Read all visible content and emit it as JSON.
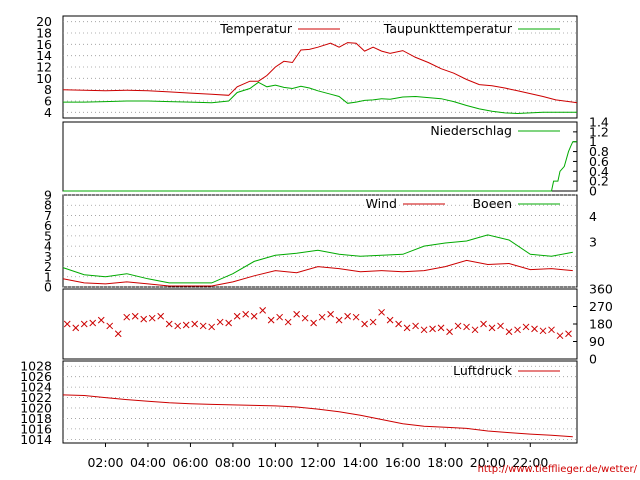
{
  "credit": "http://www.tiefflieger.de/wetter/",
  "colors": {
    "red": "#cc0000",
    "green": "#00aa00",
    "grid": "#999999",
    "credit": "#d00000"
  },
  "x_axis": {
    "ticks": [
      {
        "hour": 2,
        "label": "02:00"
      },
      {
        "hour": 4,
        "label": "04:00"
      },
      {
        "hour": 6,
        "label": "06:00"
      },
      {
        "hour": 8,
        "label": "08:00"
      },
      {
        "hour": 10,
        "label": "10:00"
      },
      {
        "hour": 12,
        "label": "12:00"
      },
      {
        "hour": 14,
        "label": "14:00"
      },
      {
        "hour": 16,
        "label": "16:00"
      },
      {
        "hour": 18,
        "label": "18:00"
      },
      {
        "hour": 20,
        "label": "20:00"
      },
      {
        "hour": 22,
        "label": "22:00"
      }
    ],
    "range_hours": [
      0,
      24.2
    ]
  },
  "chart_data": [
    {
      "id": "temperature",
      "type": "line",
      "ylim": [
        3,
        21
      ],
      "left_ticks": [
        "4",
        "6",
        "8",
        "10",
        "12",
        "14",
        "16",
        "18",
        "20"
      ],
      "series": [
        {
          "name": "Temperatur",
          "color": "#cc0000",
          "x": [
            0,
            1,
            2,
            3,
            4,
            5,
            6,
            7,
            7.8,
            8.2,
            8.8,
            9.2,
            9.6,
            10,
            10.4,
            10.8,
            11.2,
            11.6,
            12,
            12.6,
            13,
            13.4,
            13.8,
            14.2,
            14.6,
            15,
            15.4,
            16,
            16.6,
            17.2,
            17.8,
            18.4,
            19,
            19.6,
            20.2,
            20.8,
            21.4,
            22,
            22.6,
            23.2,
            24,
            24.2
          ],
          "y": [
            8,
            7.9,
            7.8,
            7.9,
            7.8,
            7.6,
            7.4,
            7.2,
            7.0,
            8.5,
            9.5,
            9.5,
            10.5,
            12,
            13,
            12.8,
            15,
            15.1,
            15.5,
            16.2,
            15.5,
            16.3,
            16.2,
            14.8,
            15.5,
            14.8,
            14.4,
            14.9,
            13.7,
            12.8,
            11.7,
            10.9,
            9.8,
            8.9,
            8.7,
            8.3,
            7.8,
            7.3,
            6.8,
            6.2,
            5.8,
            5.7
          ]
        },
        {
          "name": "Taupunkttemperatur",
          "color": "#00aa00",
          "x": [
            0,
            1,
            2,
            3,
            4,
            5,
            6,
            7,
            7.8,
            8.2,
            8.8,
            9.2,
            9.6,
            10,
            10.4,
            10.8,
            11.2,
            11.6,
            12,
            12.6,
            13,
            13.4,
            13.8,
            14.2,
            14.6,
            15,
            15.4,
            16,
            16.6,
            17.2,
            17.8,
            18.4,
            19,
            19.6,
            20.2,
            20.8,
            21.4,
            22,
            22.6,
            23.2,
            24,
            24.2
          ],
          "y": [
            5.8,
            5.8,
            5.9,
            6.0,
            6.0,
            5.9,
            5.8,
            5.7,
            6.0,
            7.5,
            8.2,
            9.3,
            8.5,
            8.8,
            8.4,
            8.2,
            8.6,
            8.3,
            7.8,
            7.2,
            6.8,
            5.6,
            5.8,
            6.1,
            6.2,
            6.4,
            6.3,
            6.7,
            6.8,
            6.6,
            6.4,
            5.9,
            5.2,
            4.6,
            4.2,
            3.9,
            3.8,
            3.9,
            4.0,
            4.0,
            4.0,
            4.0
          ]
        }
      ]
    },
    {
      "id": "precipitation",
      "type": "line",
      "ylim": [
        0,
        1.4
      ],
      "right_ticks": [
        "0",
        "0.2",
        "0.4",
        "0.6",
        "0.8",
        "1",
        "1.2",
        "1.4"
      ],
      "series": [
        {
          "name": "Niederschlag",
          "color": "#00aa00",
          "x": [
            0,
            23.0,
            23.1,
            23.3,
            23.4,
            23.6,
            23.8,
            23.9,
            24.0,
            24.2
          ],
          "y": [
            0,
            0,
            0.2,
            0.2,
            0.4,
            0.5,
            0.8,
            0.9,
            1.0,
            1.0
          ]
        }
      ]
    },
    {
      "id": "wind",
      "type": "line",
      "ylim": [
        0,
        9
      ],
      "left_ticks": [
        "0",
        "1",
        "2",
        "3",
        "4",
        "5",
        "6",
        "7",
        "8",
        "9"
      ],
      "right_ticks": [
        "3",
        "4"
      ],
      "series": [
        {
          "name": "Wind",
          "color": "#cc0000",
          "x": [
            0,
            1,
            2,
            3,
            4,
            5,
            6,
            7,
            8,
            9,
            10,
            11,
            12,
            13,
            14,
            15,
            16,
            17,
            18,
            19,
            20,
            21,
            22,
            23,
            24
          ],
          "y": [
            0.8,
            0.4,
            0.3,
            0.5,
            0.3,
            0.1,
            0.1,
            0.1,
            0.5,
            1.1,
            1.6,
            1.4,
            2.0,
            1.8,
            1.5,
            1.6,
            1.5,
            1.6,
            2.0,
            2.6,
            2.2,
            2.3,
            1.7,
            1.8,
            1.6
          ]
        },
        {
          "name": "Boeen",
          "color": "#00aa00",
          "x": [
            0,
            1,
            2,
            3,
            4,
            5,
            6,
            7,
            8,
            9,
            10,
            11,
            12,
            13,
            14,
            15,
            16,
            17,
            18,
            19,
            20,
            21,
            22,
            23,
            24
          ],
          "y": [
            1.9,
            1.2,
            1.0,
            1.3,
            0.8,
            0.4,
            0.4,
            0.4,
            1.3,
            2.5,
            3.1,
            3.3,
            3.6,
            3.2,
            3.0,
            3.1,
            3.2,
            4.0,
            4.3,
            4.5,
            5.1,
            4.6,
            3.2,
            3.0,
            3.4
          ]
        }
      ]
    },
    {
      "id": "wind-direction",
      "type": "scatter",
      "ylim": [
        0,
        360
      ],
      "right_ticks": [
        "0",
        "90",
        "180",
        "270",
        "360"
      ],
      "series": [
        {
          "name": "",
          "color": "#cc0000",
          "marker": "x",
          "x": [
            0.2,
            0.6,
            1,
            1.4,
            1.8,
            2.2,
            2.6,
            3,
            3.4,
            3.8,
            4.2,
            4.6,
            5,
            5.4,
            5.8,
            6.2,
            6.6,
            7,
            7.4,
            7.8,
            8.2,
            8.6,
            9,
            9.4,
            9.8,
            10.2,
            10.6,
            11,
            11.4,
            11.8,
            12.2,
            12.6,
            13,
            13.4,
            13.8,
            14.2,
            14.6,
            15,
            15.4,
            15.8,
            16.2,
            16.6,
            17,
            17.4,
            17.8,
            18.2,
            18.6,
            19,
            19.4,
            19.8,
            20.2,
            20.6,
            21,
            21.4,
            21.8,
            22.2,
            22.6,
            23,
            23.4,
            23.8
          ],
          "y": [
            180,
            160,
            180,
            185,
            200,
            170,
            130,
            215,
            220,
            205,
            210,
            220,
            180,
            170,
            175,
            180,
            170,
            165,
            190,
            185,
            220,
            230,
            220,
            250,
            200,
            215,
            190,
            230,
            210,
            185,
            215,
            230,
            200,
            220,
            215,
            180,
            190,
            240,
            200,
            180,
            160,
            170,
            150,
            155,
            160,
            140,
            170,
            165,
            150,
            180,
            160,
            170,
            140,
            150,
            165,
            155,
            145,
            150,
            120,
            130
          ]
        }
      ]
    },
    {
      "id": "pressure",
      "type": "line",
      "ylim": [
        1013.3,
        1029
      ],
      "left_ticks": [
        "1014",
        "1016",
        "1018",
        "1020",
        "1022",
        "1024",
        "1026",
        "1028"
      ],
      "series": [
        {
          "name": "Luftdruck",
          "color": "#cc0000",
          "x": [
            0,
            1,
            2,
            3,
            4,
            5,
            6,
            7,
            8,
            9,
            10,
            11,
            12,
            13,
            14,
            15,
            16,
            17,
            18,
            19,
            20,
            21,
            22,
            23,
            24
          ],
          "y": [
            1022.5,
            1022.4,
            1022.0,
            1021.6,
            1021.3,
            1021.0,
            1020.8,
            1020.7,
            1020.6,
            1020.5,
            1020.4,
            1020.2,
            1019.8,
            1019.3,
            1018.6,
            1017.8,
            1017.0,
            1016.5,
            1016.3,
            1016.1,
            1015.6,
            1015.3,
            1015.0,
            1014.8,
            1014.5
          ]
        }
      ]
    }
  ]
}
